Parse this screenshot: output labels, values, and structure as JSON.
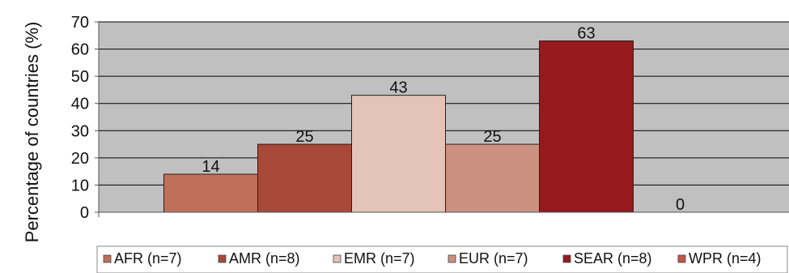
{
  "chart_data": {
    "type": "bar",
    "title": "",
    "xlabel": "",
    "ylabel": "Percentage of countries (%)",
    "ylim": [
      0,
      70
    ],
    "yticks": [
      0,
      10,
      20,
      30,
      40,
      50,
      60,
      70
    ],
    "grid": true,
    "legend_position": "bottom",
    "plot_background": "#c0c0c0",
    "categories": [
      "AFR (n=7)",
      "AMR (n=8)",
      "EMR (n=7)",
      "EUR (n=7)",
      "SEAR (n=8)",
      "WPR (n=4)"
    ],
    "values": [
      14,
      25,
      43,
      25,
      63,
      0
    ],
    "data_labels": [
      "14",
      "25",
      "43",
      "25",
      "63",
      "0"
    ],
    "colors": [
      "#c0705a",
      "#a84838",
      "#e4c4b8",
      "#cc9080",
      "#951a1e",
      "#c05848"
    ]
  }
}
